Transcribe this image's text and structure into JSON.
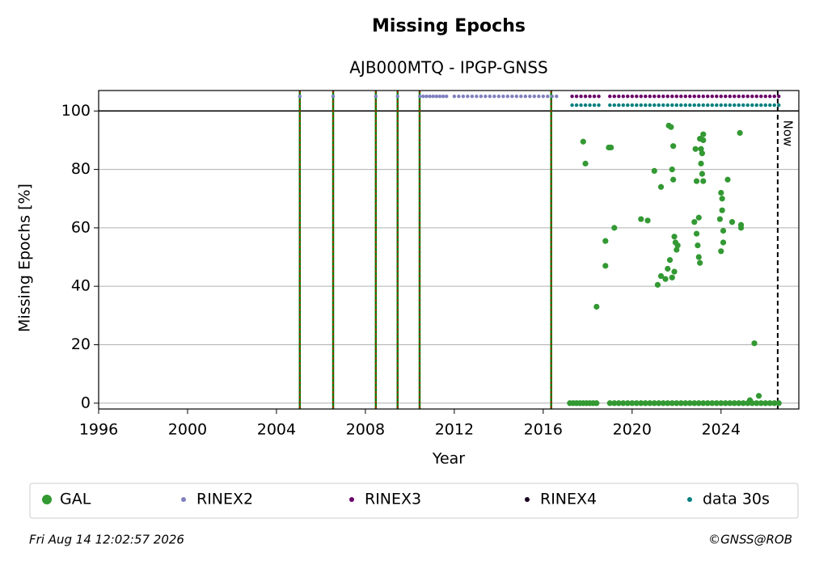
{
  "chart_data": {
    "type": "scatter",
    "title": "Missing Epochs",
    "subtitle": "AJB000MTQ - IPGP-GNSS",
    "x_label": "Year",
    "y_label": "Missing Epochs [%]",
    "xlim": [
      1996,
      2027.5
    ],
    "ylim": [
      -2,
      107
    ],
    "xticks": [
      1996,
      2000,
      2004,
      2008,
      2012,
      2016,
      2020,
      2024
    ],
    "yticks": [
      0,
      20,
      40,
      60,
      80,
      100
    ],
    "grid": true,
    "reference_line": 100,
    "vlines": [
      2005.05,
      2006.55,
      2008.47,
      2009.45,
      2010.44,
      2016.36
    ],
    "now": {
      "x": 2026.55,
      "label": "Now"
    },
    "legend": "bottom",
    "series": [
      {
        "name": "GAL",
        "color": "#339933",
        "x": [
          2017.2,
          2017.35,
          2017.5,
          2017.65,
          2017.8,
          2017.95,
          2018.1,
          2018.25,
          2018.4,
          2019.0,
          2019.2,
          2019.4,
          2019.6,
          2019.8,
          2020.0,
          2020.2,
          2020.4,
          2020.6,
          2020.8,
          2021.0,
          2021.2,
          2021.4,
          2021.6,
          2021.8,
          2022.0,
          2022.2,
          2022.4,
          2022.6,
          2022.8,
          2023.0,
          2023.2,
          2023.4,
          2023.6,
          2023.8,
          2024.0,
          2024.2,
          2024.4,
          2024.6,
          2024.8,
          2025.0,
          2025.2,
          2025.4,
          2025.6,
          2025.8,
          2026.0,
          2026.2,
          2026.4,
          2026.6,
          2017.8,
          2017.9,
          2018.4,
          2018.8,
          2018.8,
          2018.95,
          2019.05,
          2019.2,
          2020.4,
          2020.7,
          2021.0,
          2021.15,
          2021.3,
          2021.3,
          2021.5,
          2021.6,
          2021.65,
          2021.75,
          2021.8,
          2021.85,
          2021.85,
          2021.7,
          2021.8,
          2021.9,
          2021.95,
          2022.0,
          2022.05,
          2021.9,
          2022.8,
          2022.85,
          2022.9,
          2022.9,
          2022.95,
          2023.0,
          2023.05,
          2023.1,
          2023.15,
          2023.1,
          2023.15,
          2023.2,
          2023.0,
          2023.05,
          2023.2,
          2023.2,
          2024.0,
          2024.05,
          2024.05,
          2023.95,
          2024.1,
          2024.1,
          2024.0,
          2024.3,
          2024.5,
          2024.85,
          2024.9,
          2024.9,
          2025.3,
          2025.5,
          2025.7
        ],
        "values": [
          0,
          0,
          0,
          0,
          0,
          0,
          0,
          0,
          0,
          0,
          0,
          0,
          0,
          0,
          0,
          0,
          0,
          0,
          0,
          0,
          0,
          0,
          0,
          0,
          0,
          0,
          0,
          0,
          0,
          0,
          0,
          0,
          0,
          0,
          0,
          0,
          0,
          0,
          0,
          0,
          0,
          0,
          0,
          0,
          0,
          0,
          0,
          0,
          89.5,
          82,
          33,
          55.5,
          47,
          87.5,
          87.5,
          60,
          63,
          62.5,
          79.5,
          40.5,
          74,
          43.5,
          42.5,
          46,
          95,
          94.5,
          80,
          88,
          76.5,
          49,
          43,
          57,
          55,
          52.5,
          54,
          45,
          62,
          87,
          76,
          58,
          54,
          63.5,
          90.5,
          87,
          85.5,
          82,
          78.5,
          76,
          50,
          48,
          92,
          90,
          72,
          70,
          66,
          63,
          59,
          55,
          52,
          76.5,
          62,
          92.5,
          61,
          60,
          1,
          20.5,
          2.5
        ]
      },
      {
        "name": "RINEX2",
        "color": "#8080c0",
        "x": [
          2005.05,
          2006.55,
          2008.47,
          2009.45,
          2010.45,
          2010.6,
          2010.75,
          2010.9,
          2011.05,
          2011.2,
          2011.35,
          2011.5,
          2011.65,
          2012.0,
          2012.2,
          2012.4,
          2012.6,
          2012.8,
          2013.0,
          2013.2,
          2013.4,
          2013.6,
          2013.8,
          2014.0,
          2014.2,
          2014.4,
          2014.6,
          2014.8,
          2015.0,
          2015.2,
          2015.4,
          2015.6,
          2015.8,
          2016.0,
          2016.2,
          2016.4,
          2016.6
        ],
        "values": [
          105,
          105,
          105,
          105,
          105,
          105,
          105,
          105,
          105,
          105,
          105,
          105,
          105,
          105,
          105,
          105,
          105,
          105,
          105,
          105,
          105,
          105,
          105,
          105,
          105,
          105,
          105,
          105,
          105,
          105,
          105,
          105,
          105,
          105,
          105,
          105,
          105
        ]
      },
      {
        "name": "RINEX3",
        "color": "#6a006a",
        "x": [
          2017.3,
          2017.5,
          2017.7,
          2017.9,
          2018.1,
          2018.3,
          2018.5,
          2019.0,
          2019.2,
          2019.4,
          2019.6,
          2019.8,
          2020.0,
          2020.2,
          2020.4,
          2020.6,
          2020.8,
          2021.0,
          2021.2,
          2021.4,
          2021.6,
          2021.8,
          2022.0,
          2022.2,
          2022.4,
          2022.6,
          2022.8,
          2023.0,
          2023.2,
          2023.4,
          2023.6,
          2023.8,
          2024.0,
          2024.2,
          2024.4,
          2024.6,
          2024.8,
          2025.0,
          2025.2,
          2025.4,
          2025.6,
          2025.8,
          2026.0,
          2026.2,
          2026.4,
          2026.6
        ],
        "values": [
          105,
          105,
          105,
          105,
          105,
          105,
          105,
          105,
          105,
          105,
          105,
          105,
          105,
          105,
          105,
          105,
          105,
          105,
          105,
          105,
          105,
          105,
          105,
          105,
          105,
          105,
          105,
          105,
          105,
          105,
          105,
          105,
          105,
          105,
          105,
          105,
          105,
          105,
          105,
          105,
          105,
          105,
          105,
          105,
          105,
          105
        ]
      },
      {
        "name": "RINEX4",
        "color": "#1a0020",
        "x": [],
        "values": []
      },
      {
        "name": "data 30s",
        "color": "#007f7f",
        "x": [
          2017.3,
          2017.5,
          2017.7,
          2017.9,
          2018.1,
          2018.3,
          2018.5,
          2019.0,
          2019.2,
          2019.4,
          2019.6,
          2019.8,
          2020.0,
          2020.2,
          2020.4,
          2020.6,
          2020.8,
          2021.0,
          2021.2,
          2021.4,
          2021.6,
          2021.8,
          2022.0,
          2022.2,
          2022.4,
          2022.6,
          2022.8,
          2023.0,
          2023.2,
          2023.4,
          2023.6,
          2023.8,
          2024.0,
          2024.2,
          2024.4,
          2024.6,
          2024.8,
          2025.0,
          2025.2,
          2025.4,
          2025.6,
          2025.8,
          2026.0,
          2026.2,
          2026.4,
          2026.6
        ],
        "values": [
          102,
          102,
          102,
          102,
          102,
          102,
          102,
          102,
          102,
          102,
          102,
          102,
          102,
          102,
          102,
          102,
          102,
          102,
          102,
          102,
          102,
          102,
          102,
          102,
          102,
          102,
          102,
          102,
          102,
          102,
          102,
          102,
          102,
          102,
          102,
          102,
          102,
          102,
          102,
          102,
          102,
          102,
          102,
          102,
          102,
          102
        ]
      }
    ],
    "footer_left": "Fri Aug 14 12:02:57 2026",
    "footer_right": "©GNSS@ROB"
  }
}
